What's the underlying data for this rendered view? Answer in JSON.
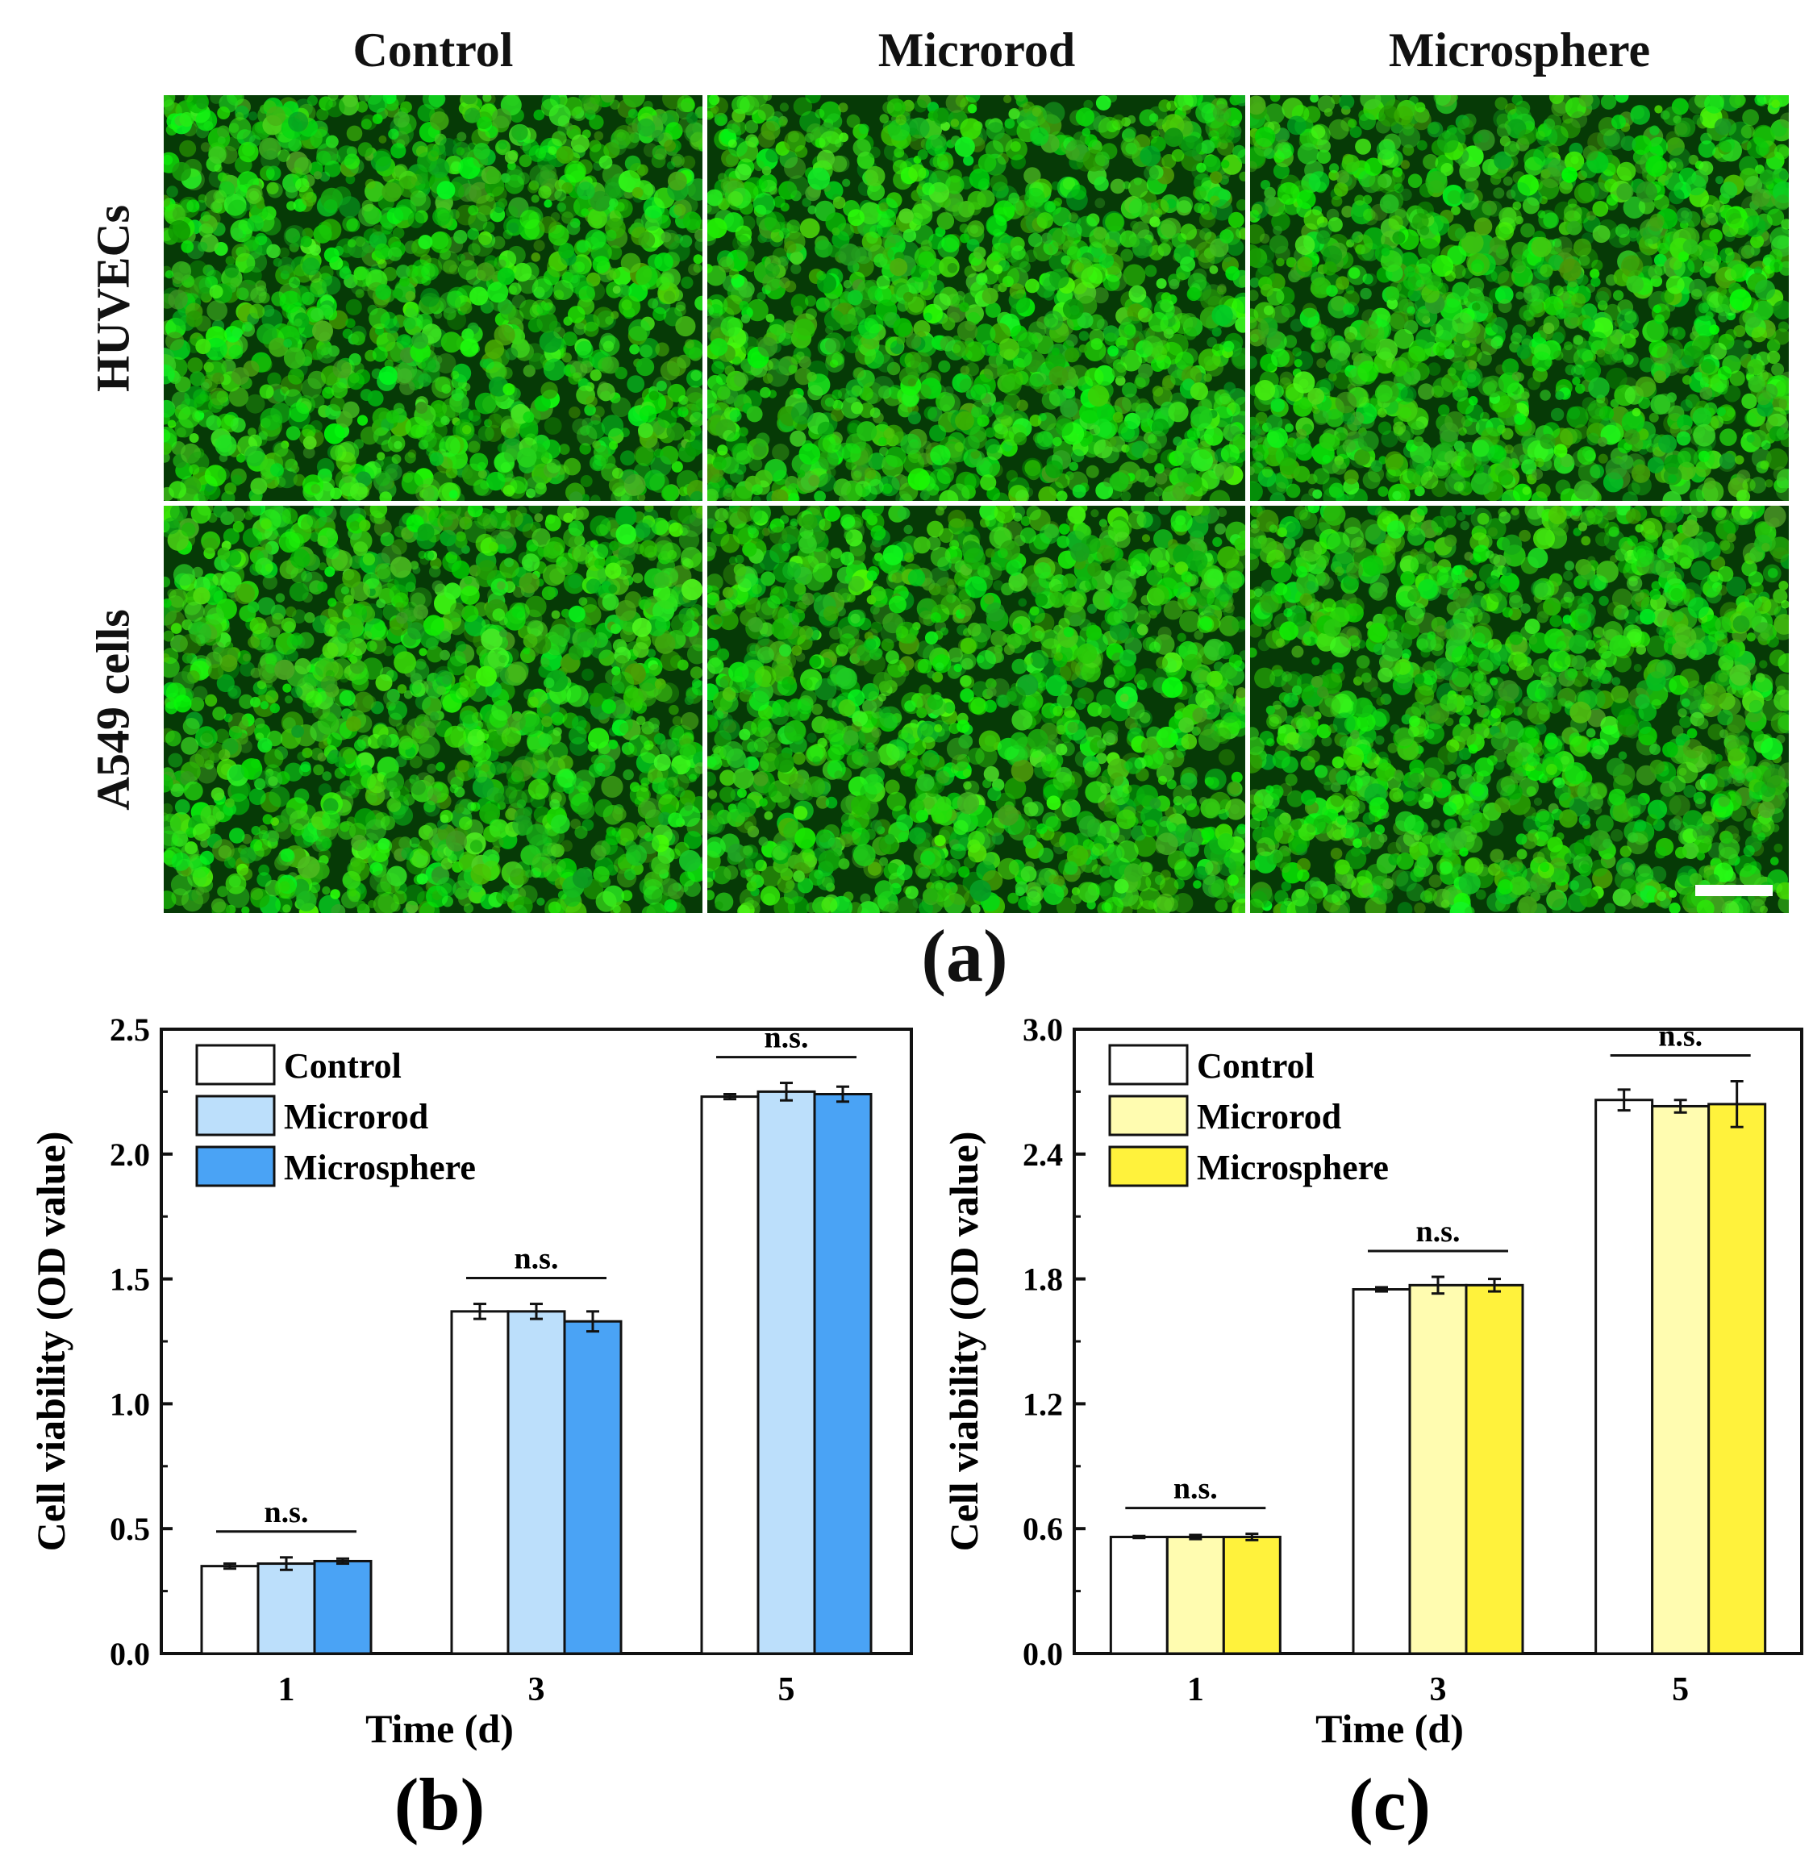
{
  "figure": {
    "columns": [
      "Control",
      "Microrod",
      "Microsphere"
    ],
    "rows": [
      "HUVECs",
      "A549 cells"
    ],
    "panel_labels": [
      "(a)",
      "(b)",
      "(c)"
    ]
  },
  "colors": {
    "fluor_dark": "#063a06",
    "fluor_bright": "#39e639",
    "blue_light": "#bcdffb",
    "blue_dark": "#4aa3f5",
    "yellow_light": "#fffcb0",
    "yellow_dark": "#fff23c"
  },
  "chart_data": [
    {
      "type": "bar",
      "title": "(b)",
      "xlabel": "Time (d)",
      "ylabel": "Cell viability (OD value)",
      "categories": [
        "1",
        "3",
        "5"
      ],
      "ylim": [
        0,
        2.5
      ],
      "yticks": [
        "0.0",
        "0.5",
        "1.0",
        "1.5",
        "2.0",
        "2.5"
      ],
      "series": [
        {
          "name": "Control",
          "color": "#ffffff",
          "values": [
            0.35,
            1.37,
            2.23
          ],
          "errors": [
            0.01,
            0.03,
            0.01
          ]
        },
        {
          "name": "Microrod",
          "color": "#bcdffb",
          "values": [
            0.36,
            1.37,
            2.25
          ],
          "errors": [
            0.025,
            0.03,
            0.035
          ]
        },
        {
          "name": "Microsphere",
          "color": "#4aa3f5",
          "values": [
            0.37,
            1.33,
            2.24
          ],
          "errors": [
            0.01,
            0.04,
            0.03
          ]
        }
      ],
      "annotations": [
        "n.s.",
        "n.s.",
        "n.s."
      ],
      "legend": "top-left"
    },
    {
      "type": "bar",
      "title": "(c)",
      "xlabel": "Time (d)",
      "ylabel": "Cell viability (OD value)",
      "categories": [
        "1",
        "3",
        "5"
      ],
      "ylim": [
        0,
        3.0
      ],
      "yticks": [
        "0.0",
        "0.6",
        "1.2",
        "1.8",
        "2.4",
        "3.0"
      ],
      "series": [
        {
          "name": "Control",
          "color": "#ffffff",
          "values": [
            0.56,
            1.75,
            2.66
          ],
          "errors": [
            0.005,
            0.01,
            0.05
          ]
        },
        {
          "name": "Microrod",
          "color": "#fffcb0",
          "values": [
            0.56,
            1.77,
            2.63
          ],
          "errors": [
            0.01,
            0.04,
            0.03
          ]
        },
        {
          "name": "Microsphere",
          "color": "#fff23c",
          "values": [
            0.56,
            1.77,
            2.64
          ],
          "errors": [
            0.015,
            0.03,
            0.11
          ]
        }
      ],
      "annotations": [
        "n.s.",
        "n.s.",
        "n.s."
      ],
      "legend": "top-left"
    }
  ]
}
